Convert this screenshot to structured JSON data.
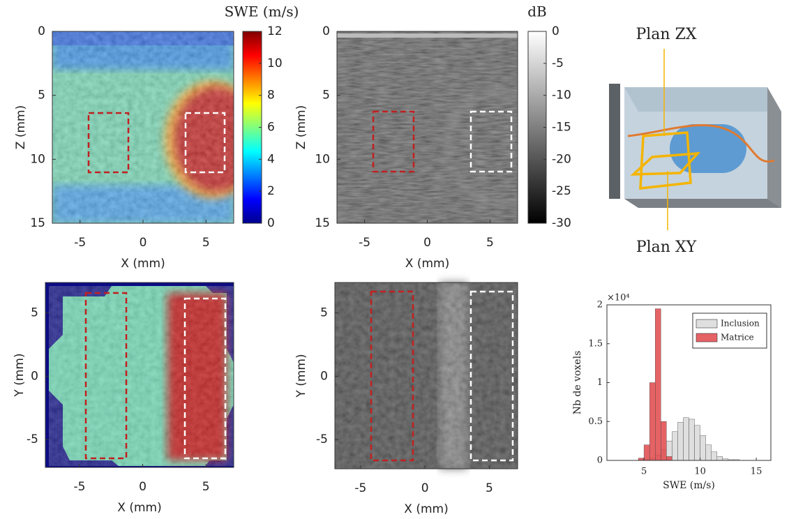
{
  "chart_data": [
    {
      "type": "heatmap",
      "xlabel": "X (mm)",
      "ylabel": "Z (mm)",
      "xlim": [
        -7.2,
        7.2
      ],
      "ylim": [
        0,
        15
      ],
      "y_inverted": true,
      "xticks": [
        -5,
        0,
        5
      ],
      "yticks": [
        0,
        5,
        10,
        15
      ],
      "colorbar": {
        "label": "SWE (m/s)",
        "lim": [
          0,
          12
        ],
        "ticks": [
          0,
          2,
          4,
          6,
          8,
          10,
          12
        ],
        "colormap": "jet"
      }
    },
    {
      "type": "heatmap",
      "xlabel": "X (mm)",
      "ylabel": "Z (mm)",
      "xlim": [
        -7.2,
        7.2
      ],
      "ylim": [
        0,
        15
      ],
      "y_inverted": true,
      "xticks": [
        -5,
        0,
        5
      ],
      "yticks": [
        0,
        5,
        10,
        15
      ],
      "colorbar": {
        "label": "dB",
        "lim": [
          -30,
          0
        ],
        "ticks": [
          0,
          -5,
          -10,
          -15,
          -20,
          -25,
          -30
        ],
        "colormap": "gray"
      }
    },
    {
      "type": "heatmap",
      "xlabel": "X (mm)",
      "ylabel": "Y (mm)",
      "xlim": [
        -7.7,
        7.2
      ],
      "ylim": [
        -7.2,
        7.4
      ],
      "y_inverted": false,
      "xticks": [
        -5,
        0,
        5
      ],
      "yticks": [
        5,
        0,
        -5
      ]
    },
    {
      "type": "heatmap",
      "xlabel": "X (mm)",
      "ylabel": "Y (mm)",
      "xlim": [
        -7.0,
        7.2
      ],
      "ylim": [
        -7.3,
        7.4
      ],
      "y_inverted": false,
      "xticks": [
        -5,
        0,
        5
      ],
      "yticks": [
        5,
        0,
        -5
      ]
    },
    {
      "type": "histogram",
      "xlabel": "SWE (m/s)",
      "ylabel": "Nb de voxels",
      "multiplier": "×10⁴",
      "xlim": [
        1.7,
        16.3
      ],
      "ylim": [
        0,
        2
      ],
      "xticks": [
        5,
        10,
        15
      ],
      "yticks": [
        0,
        0.5,
        1,
        1.5,
        2
      ],
      "legend": "upper right",
      "bins": [
        3,
        3.5,
        4,
        4.5,
        5,
        5.5,
        6,
        6.5,
        7,
        7.5,
        8,
        8.5,
        9,
        9.5,
        10,
        10.5,
        11,
        11.5,
        12,
        12.5,
        13,
        13.5,
        14,
        14.5,
        15
      ],
      "series": [
        {
          "name": "Inclusion",
          "color": "#d9d9d9",
          "values": [
            0,
            0,
            0,
            0,
            0.01,
            0.03,
            0.07,
            0.14,
            0.25,
            0.37,
            0.49,
            0.55,
            0.53,
            0.45,
            0.32,
            0.2,
            0.11,
            0.05,
            0.02,
            0.01,
            0.01,
            0,
            0,
            0
          ]
        },
        {
          "name": "Matrice",
          "color": "#e0484a",
          "values": [
            0,
            0,
            0,
            0.03,
            0.2,
            1.0,
            1.95,
            0.5,
            0.05,
            0,
            0,
            0,
            0,
            0,
            0,
            0,
            0,
            0,
            0,
            0,
            0,
            0,
            0,
            0
          ]
        }
      ]
    }
  ],
  "diagram": {
    "labels": [
      "Plan ZX",
      "Plan XY"
    ]
  }
}
